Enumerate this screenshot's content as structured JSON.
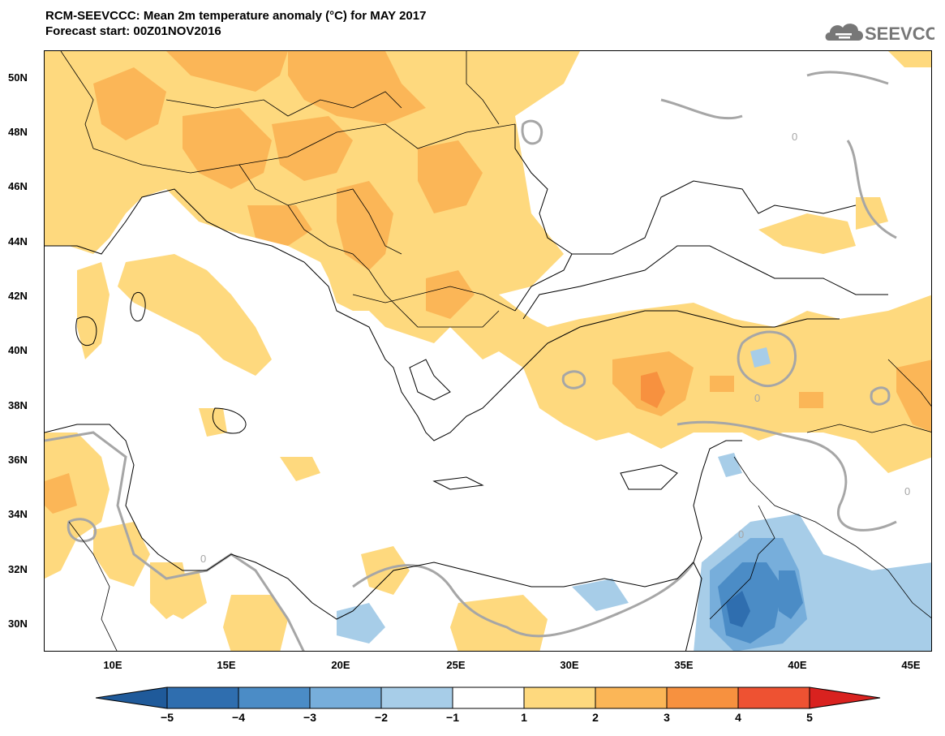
{
  "header": {
    "title": "RCM-SEEVCCC: Mean 2m temperature anomaly (°C) for MAY 2017",
    "subtitle": "Forecast start: 00Z01NOV2016",
    "logo_text": "SEEVCCC",
    "logo_icon": "cloud-icon"
  },
  "latitude_labels": [
    "50N",
    "48N",
    "46N",
    "44N",
    "42N",
    "40N",
    "38N",
    "36N",
    "34N",
    "32N",
    "30N"
  ],
  "longitude_labels": [
    "10E",
    "15E",
    "20E",
    "25E",
    "30E",
    "35E",
    "40E",
    "45E"
  ],
  "contour_labels": [
    "0",
    "0",
    "0",
    "0",
    "0"
  ],
  "colorbar": {
    "ticks": [
      "−5",
      "−4",
      "−3",
      "−2",
      "−1",
      "1",
      "2",
      "3",
      "4",
      "5"
    ],
    "colors": [
      "#1f5a9a",
      "#2f6eaf",
      "#4b8cc6",
      "#77aedb",
      "#a7cde8",
      "#ffffff",
      "#fed97e",
      "#fbb657",
      "#f7913f",
      "#ee5232",
      "#d9221f"
    ]
  },
  "palette": {
    "warm1": "#fed97e",
    "warm2": "#fbb657",
    "warm3": "#f7913f",
    "cool1": "#a7cde8",
    "cool2": "#77aedb",
    "cool3": "#4b8cc6",
    "cool4": "#2f6eaf",
    "contour": "#a6a6a6",
    "coast": "#000000"
  }
}
